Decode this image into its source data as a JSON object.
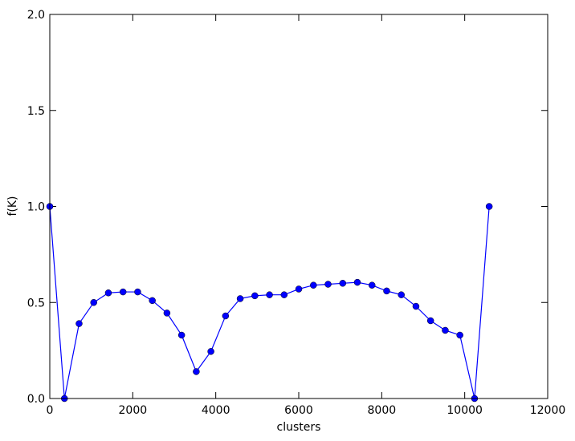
{
  "chart_data": {
    "type": "line",
    "x_label": "clusters",
    "y_label": "f(K)",
    "x": [
      0,
      353,
      706,
      1059,
      1412,
      1765,
      2118,
      2471,
      2824,
      3177,
      3530,
      3883,
      4236,
      4589,
      4942,
      5295,
      5648,
      6001,
      6354,
      6707,
      7060,
      7413,
      7766,
      8119,
      8472,
      8825,
      9178,
      9531,
      9884,
      10237,
      10590
    ],
    "values": [
      1.0,
      0.0,
      0.39,
      0.5,
      0.55,
      0.555,
      0.555,
      0.51,
      0.445,
      0.33,
      0.14,
      0.245,
      0.43,
      0.52,
      0.535,
      0.54,
      0.54,
      0.57,
      0.59,
      0.595,
      0.6,
      0.605,
      0.59,
      0.56,
      0.54,
      0.48,
      0.405,
      0.355,
      0.33,
      0.0,
      1.0
    ],
    "color": "#0000ff",
    "xlim": [
      0,
      12000
    ],
    "xticks": [
      0,
      2000,
      4000,
      6000,
      8000,
      10000,
      12000
    ],
    "ylim": [
      0,
      2.0
    ],
    "yticks": [
      {
        "value": 0,
        "label": "0.0"
      },
      0.5,
      {
        "value": 1,
        "label": "1.0"
      },
      1.5,
      {
        "value": 2,
        "label": "2.0"
      }
    ]
  }
}
